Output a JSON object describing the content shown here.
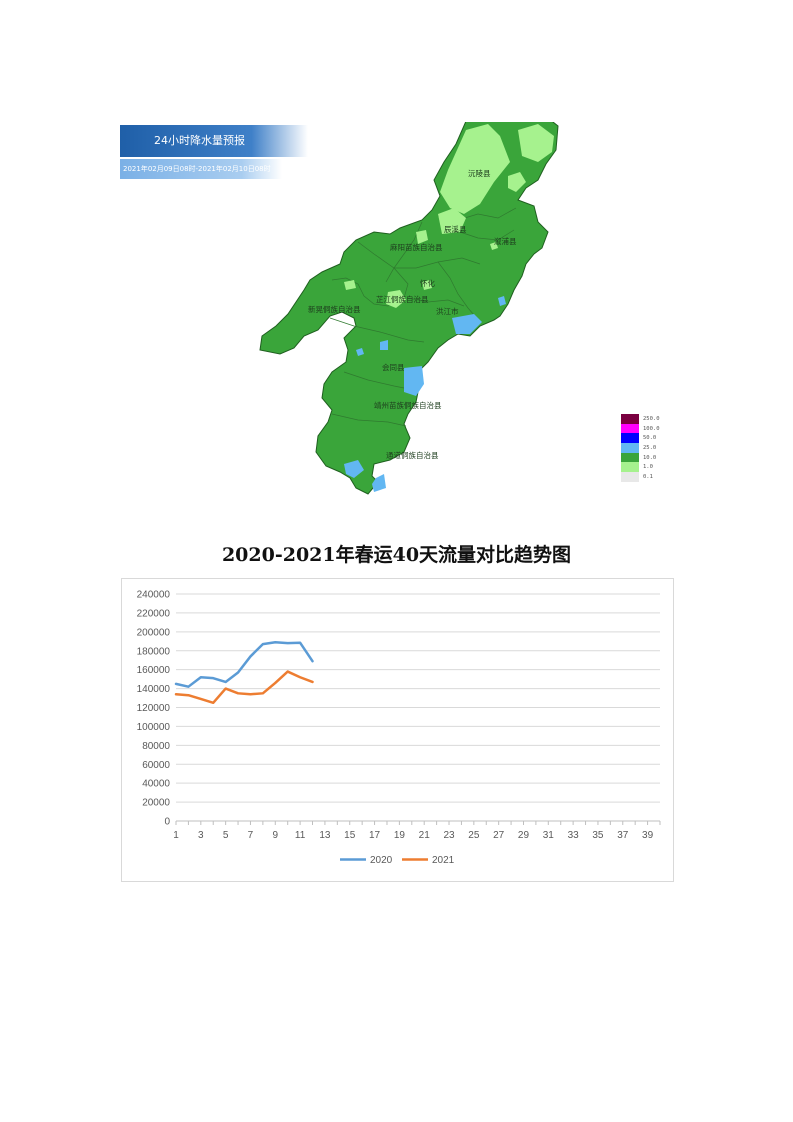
{
  "map": {
    "banner_title": "24小时降水量预报",
    "time_range": "2021年02月09日08时-2021年02月10日08时",
    "counties": [
      "沅陵县",
      "辰溪县",
      "溆浦县",
      "麻阳苗族自治县",
      "怀化",
      "芷江侗族自治县",
      "新晃侗族自治县",
      "洪江市",
      "会同县",
      "靖州苗族侗族自治县",
      "通道侗族自治县"
    ],
    "legend": [
      {
        "label": "250.0",
        "color": "#7a0040"
      },
      {
        "label": "100.0",
        "color": "#ff00ff"
      },
      {
        "label": "50.0",
        "color": "#0000ff"
      },
      {
        "label": "25.0",
        "color": "#62b7f2"
      },
      {
        "label": "10.0",
        "color": "#3aa53a"
      },
      {
        "label": "1.0",
        "color": "#a6f28e"
      },
      {
        "label": "0.1",
        "color": "#e8e8e8"
      }
    ]
  },
  "chart_title": "2020-2021年春运40天流量对比趋势图",
  "chart_data": {
    "type": "line",
    "x": [
      1,
      2,
      3,
      4,
      5,
      6,
      7,
      8,
      9,
      10,
      11,
      12
    ],
    "x_ticks": [
      1,
      3,
      5,
      7,
      9,
      11,
      13,
      15,
      17,
      19,
      21,
      23,
      25,
      27,
      29,
      31,
      33,
      35,
      37,
      39
    ],
    "xlim": [
      1,
      40
    ],
    "ylim": [
      0,
      240000
    ],
    "y_ticks": [
      0,
      20000,
      40000,
      60000,
      80000,
      100000,
      120000,
      140000,
      160000,
      180000,
      200000,
      220000,
      240000
    ],
    "grid": true,
    "legend_position": "bottom",
    "series": [
      {
        "name": "2020",
        "color": "#5b9bd5",
        "values": [
          145000,
          142000,
          152000,
          151000,
          147000,
          157000,
          174000,
          187000,
          189000,
          188000,
          188500,
          169000
        ]
      },
      {
        "name": "2021",
        "color": "#ed7d31",
        "values": [
          134000,
          133000,
          129000,
          125000,
          140000,
          135000,
          134000,
          135000,
          146000,
          158000,
          152000,
          147000
        ]
      }
    ]
  }
}
